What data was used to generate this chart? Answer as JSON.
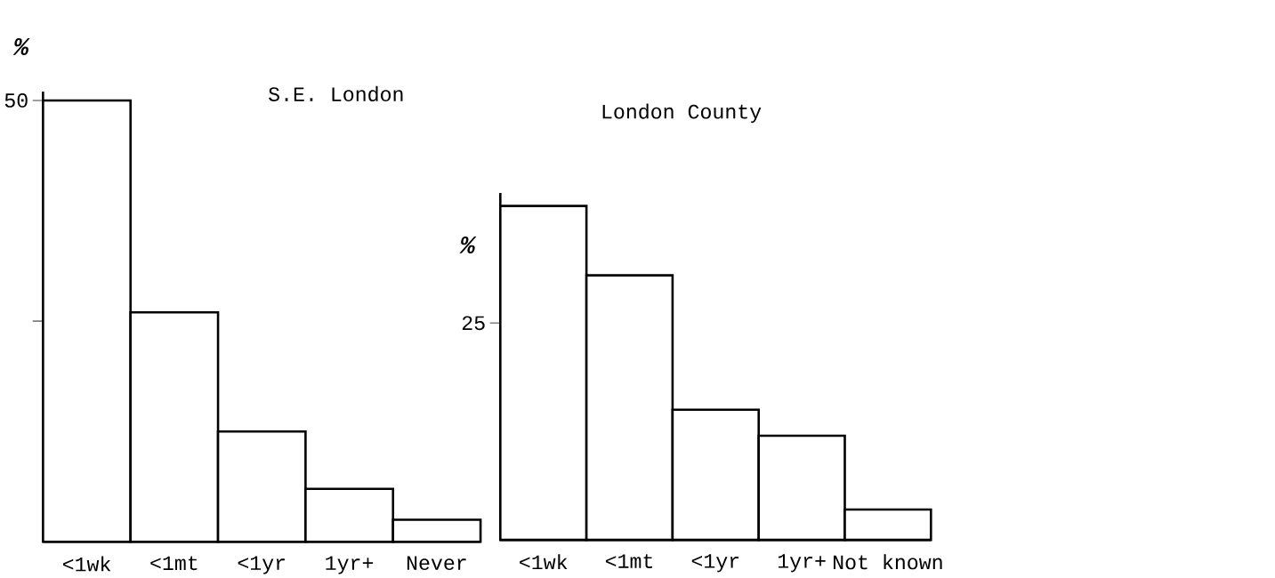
{
  "chart_data": [
    {
      "type": "bar",
      "title": "S.E. London",
      "ylabel": "%",
      "categories": [
        "<1wk",
        "<1mt",
        "<1yr",
        "1yr+",
        "Never"
      ],
      "values": [
        50,
        26,
        12.5,
        6,
        2.5
      ],
      "color": "#ffffff",
      "ylim": [
        0,
        51
      ],
      "yticks": [
        {
          "value": 25,
          "label": null
        },
        50
      ]
    },
    {
      "type": "bar",
      "title": "London County",
      "ylabel": "%",
      "categories": [
        "<1wk",
        "<1mt",
        "<1yr",
        "1yr+",
        "Not known"
      ],
      "values": [
        38.5,
        30.5,
        15,
        12,
        3.5
      ],
      "color": "#ffffff",
      "ylim": [
        0,
        40
      ],
      "yticks": [
        25
      ]
    }
  ]
}
